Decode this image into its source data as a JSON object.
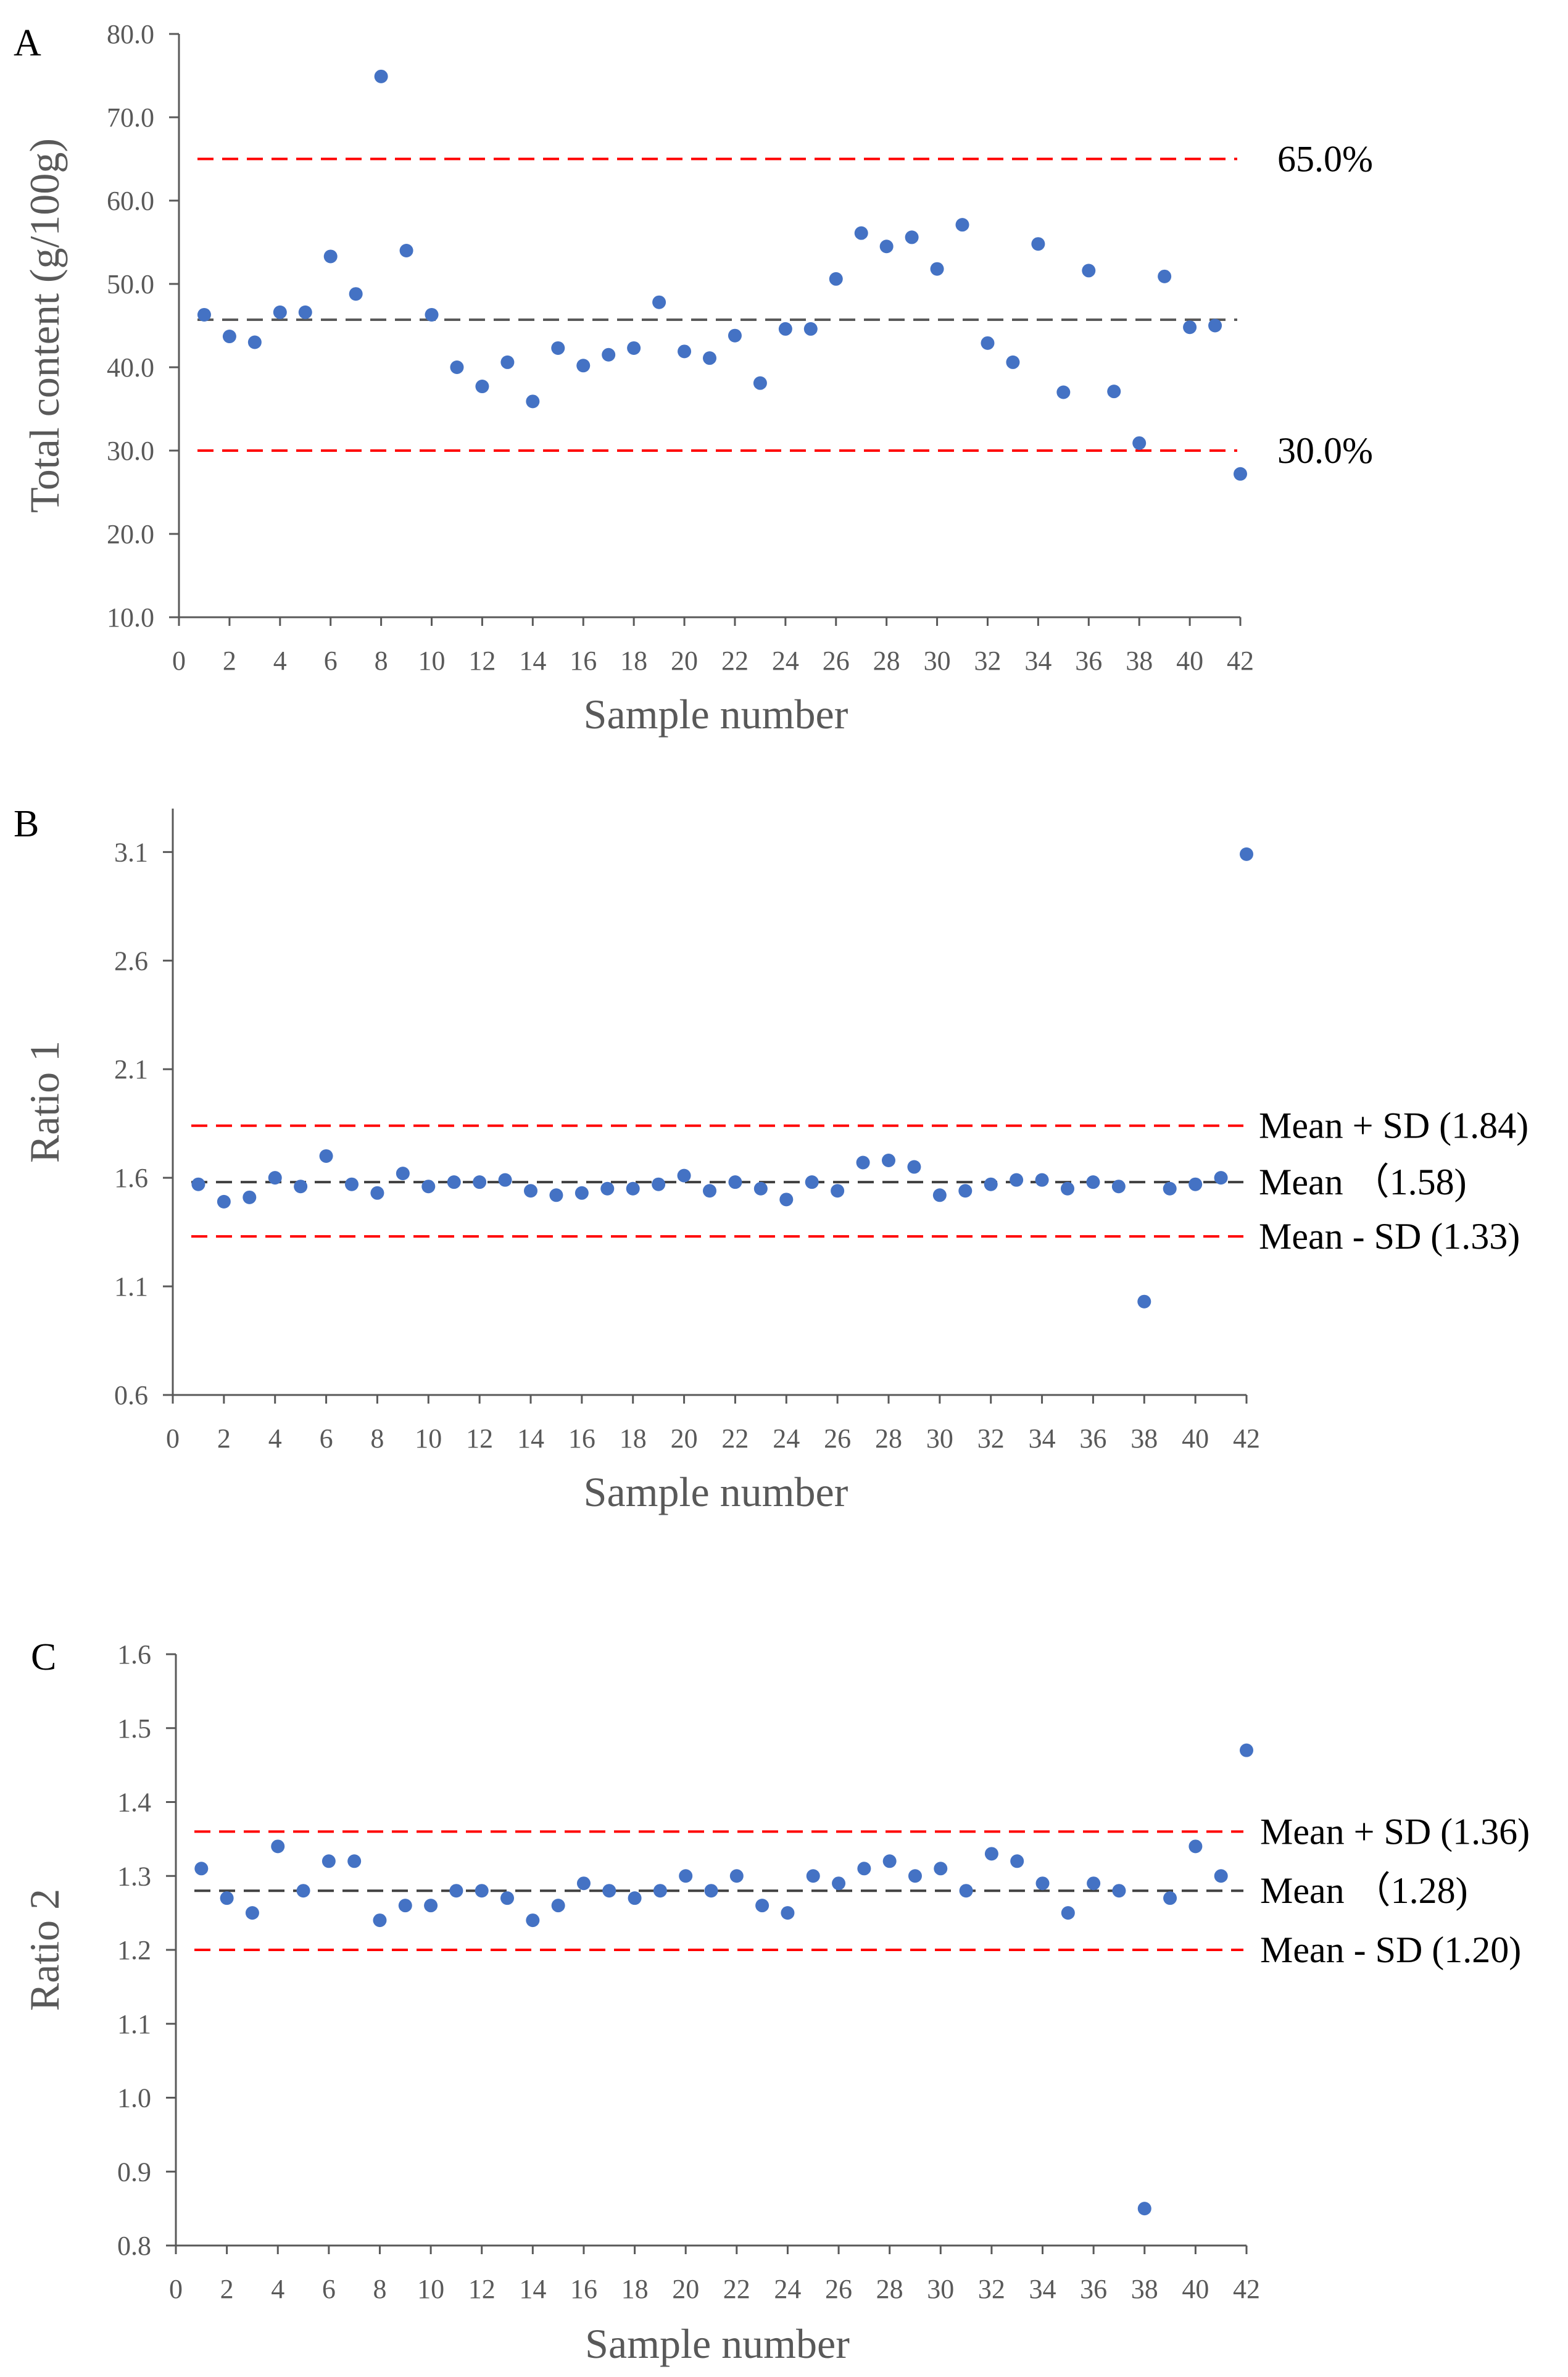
{
  "chart_data": [
    {
      "type": "scatter",
      "panel_label": "A",
      "title": "",
      "xlabel": "Sample number",
      "ylabel": "Total content (g/100g)",
      "xlim": [
        0,
        42
      ],
      "ylim": [
        10,
        80
      ],
      "x_ticks": [
        "0",
        "2",
        "4",
        "6",
        "8",
        "10",
        "12",
        "14",
        "16",
        "18",
        "20",
        "22",
        "24",
        "26",
        "28",
        "30",
        "32",
        "34",
        "36",
        "38",
        "40",
        "42"
      ],
      "y_ticks": [
        "10.0",
        "20.0",
        "30.0",
        "40.0",
        "50.0",
        "60.0",
        "70.0",
        "80.0"
      ],
      "colors": {
        "points": "#4472C4",
        "limit_line": "#FF0000",
        "mean_line": "#595959",
        "axis": "#595959"
      },
      "x": [
        1,
        2,
        3,
        4,
        5,
        6,
        7,
        8,
        9,
        10,
        11,
        12,
        13,
        14,
        15,
        16,
        17,
        18,
        19,
        20,
        21,
        22,
        23,
        24,
        25,
        26,
        27,
        28,
        29,
        30,
        31,
        32,
        33,
        34,
        35,
        36,
        37,
        38,
        39,
        40,
        41,
        42
      ],
      "values": [
        46.3,
        43.7,
        43.0,
        46.6,
        46.6,
        53.3,
        48.8,
        74.9,
        54.0,
        46.3,
        40.0,
        37.7,
        40.6,
        35.9,
        42.3,
        40.2,
        41.5,
        42.3,
        47.8,
        41.9,
        41.1,
        43.8,
        38.1,
        44.6,
        44.6,
        50.6,
        56.1,
        54.5,
        55.6,
        51.8,
        57.1,
        42.9,
        40.6,
        54.8,
        37.0,
        51.6,
        37.1,
        30.9,
        50.9,
        44.8,
        45.0,
        27.2
      ],
      "reference_lines": [
        {
          "name": "upper",
          "value": 65.0,
          "style": "limit",
          "label": "65.0%"
        },
        {
          "name": "mean",
          "value": 45.7,
          "style": "mean",
          "label": ""
        },
        {
          "name": "lower",
          "value": 30.0,
          "style": "limit",
          "label": "30.0%"
        }
      ]
    },
    {
      "type": "scatter",
      "panel_label": "B",
      "title": "",
      "xlabel": "Sample number",
      "ylabel": "Ratio 1",
      "xlim": [
        0,
        42
      ],
      "ylim": [
        0.6,
        3.3
      ],
      "x_ticks": [
        "0",
        "2",
        "4",
        "6",
        "8",
        "10",
        "12",
        "14",
        "16",
        "18",
        "20",
        "22",
        "24",
        "26",
        "28",
        "30",
        "32",
        "34",
        "36",
        "38",
        "40",
        "42"
      ],
      "y_ticks": [
        "0.6",
        "1.1",
        "1.6",
        "2.1",
        "2.6",
        "3.1"
      ],
      "colors": {
        "points": "#4472C4",
        "limit_line": "#FF0000",
        "mean_line": "#404040",
        "axis": "#595959"
      },
      "x": [
        1,
        2,
        3,
        4,
        5,
        6,
        7,
        8,
        9,
        10,
        11,
        12,
        13,
        14,
        15,
        16,
        17,
        18,
        19,
        20,
        21,
        22,
        23,
        24,
        25,
        26,
        27,
        28,
        29,
        30,
        31,
        32,
        33,
        34,
        35,
        36,
        37,
        38,
        39,
        40,
        41,
        42
      ],
      "values": [
        1.57,
        1.49,
        1.51,
        1.6,
        1.56,
        1.7,
        1.57,
        1.53,
        1.62,
        1.56,
        1.58,
        1.58,
        1.59,
        1.54,
        1.52,
        1.53,
        1.55,
        1.55,
        1.57,
        1.61,
        1.54,
        1.58,
        1.55,
        1.5,
        1.58,
        1.54,
        1.67,
        1.68,
        1.65,
        1.52,
        1.54,
        1.57,
        1.59,
        1.59,
        1.55,
        1.58,
        1.56,
        1.03,
        1.55,
        1.57,
        1.6,
        3.09
      ],
      "reference_lines": [
        {
          "name": "mean_plus_sd",
          "value": 1.84,
          "style": "limit",
          "label": "Mean + SD (1.84)"
        },
        {
          "name": "mean",
          "value": 1.58,
          "style": "mean",
          "label": "Mean （1.58)"
        },
        {
          "name": "mean_minus_sd",
          "value": 1.33,
          "style": "limit",
          "label": "Mean - SD (1.33)"
        }
      ]
    },
    {
      "type": "scatter",
      "panel_label": "C",
      "title": "",
      "xlabel": "Sample number",
      "ylabel": "Ratio 2",
      "xlim": [
        0,
        42
      ],
      "ylim": [
        0.8,
        1.6
      ],
      "x_ticks": [
        "0",
        "2",
        "4",
        "6",
        "8",
        "10",
        "12",
        "14",
        "16",
        "18",
        "20",
        "22",
        "24",
        "26",
        "28",
        "30",
        "32",
        "34",
        "36",
        "38",
        "40",
        "42"
      ],
      "y_ticks": [
        "0.8",
        "0.9",
        "1.0",
        "1.1",
        "1.2",
        "1.3",
        "1.4",
        "1.5",
        "1.6"
      ],
      "colors": {
        "points": "#4472C4",
        "limit_line": "#FF0000",
        "mean_line": "#404040",
        "axis": "#595959"
      },
      "x": [
        1,
        2,
        3,
        4,
        5,
        6,
        7,
        8,
        9,
        10,
        11,
        12,
        13,
        14,
        15,
        16,
        17,
        18,
        19,
        20,
        21,
        22,
        23,
        24,
        25,
        26,
        27,
        28,
        29,
        30,
        31,
        32,
        33,
        34,
        35,
        36,
        37,
        38,
        39,
        40,
        41,
        42
      ],
      "values": [
        1.31,
        1.27,
        1.25,
        1.34,
        1.28,
        1.32,
        1.32,
        1.24,
        1.26,
        1.26,
        1.28,
        1.28,
        1.27,
        1.24,
        1.26,
        1.29,
        1.28,
        1.27,
        1.28,
        1.3,
        1.28,
        1.3,
        1.26,
        1.25,
        1.3,
        1.29,
        1.31,
        1.32,
        1.3,
        1.31,
        1.28,
        1.33,
        1.32,
        1.29,
        1.25,
        1.29,
        1.28,
        0.85,
        1.27,
        1.34,
        1.3,
        1.47
      ],
      "reference_lines": [
        {
          "name": "mean_plus_sd",
          "value": 1.36,
          "style": "limit",
          "label": "Mean + SD (1.36)"
        },
        {
          "name": "mean",
          "value": 1.28,
          "style": "mean",
          "label": "Mean （1.28)"
        },
        {
          "name": "mean_minus_sd",
          "value": 1.2,
          "style": "limit",
          "label": "Mean - SD (1.20)"
        }
      ]
    }
  ]
}
